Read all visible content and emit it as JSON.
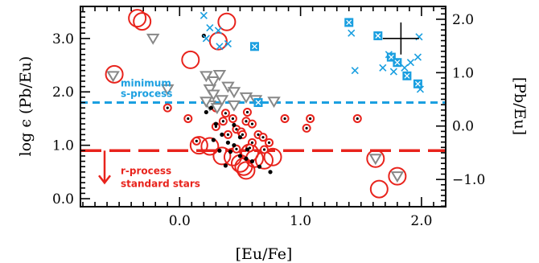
{
  "chart_data": {
    "type": "scatter",
    "xlabel": "[Eu/Fe]",
    "ylabel": "log ϵ (Pb/Eu)",
    "ylabel_right": "[Pb/Eu]",
    "xlim": [
      -0.82,
      2.2
    ],
    "ylim": [
      -0.15,
      3.6
    ],
    "right_axis_offset": 1.36,
    "x_ticks": [
      0.0,
      1.0,
      2.0
    ],
    "y_ticks": [
      0.0,
      1.0,
      2.0,
      3.0
    ],
    "y_right_ticks": [
      -1.0,
      0.0,
      1.0,
      2.0
    ],
    "x_tick_labels": [
      "0.0",
      "1.0",
      "2.0"
    ],
    "y_tick_labels": [
      "0.0",
      "1.0",
      "2.0",
      "3.0"
    ],
    "y_right_tick_labels": [
      "−1.0",
      "0.0",
      "1.0",
      "2.0"
    ],
    "grid": false,
    "colors": {
      "s_process": "#1a9fe0",
      "r_process": "#e8231c",
      "upper_limit": "#888888",
      "black": "#000000"
    },
    "reference_lines": [
      {
        "y": 1.8,
        "color": "#1a9fe0",
        "style": "dashed",
        "text": [
          "minimum",
          "s-process"
        ]
      },
      {
        "y": 0.9,
        "color": "#e8231c",
        "style": "long-dashed",
        "text": [
          "r-process",
          "standard stars"
        ]
      }
    ],
    "error_bar": {
      "x": 1.83,
      "y": 3.0,
      "dx": 0.15,
      "dy": 0.3
    },
    "series": [
      {
        "marker": "blue-x",
        "points": [
          [
            0.2,
            3.43
          ],
          [
            0.25,
            3.2
          ],
          [
            0.22,
            3.0
          ],
          [
            0.32,
            3.15
          ],
          [
            0.33,
            2.85
          ],
          [
            0.4,
            2.9
          ],
          [
            1.42,
            3.1
          ],
          [
            1.68,
            2.45
          ],
          [
            1.73,
            2.7
          ],
          [
            1.77,
            2.38
          ],
          [
            1.86,
            2.45
          ],
          [
            1.91,
            2.55
          ],
          [
            1.97,
            2.65
          ],
          [
            1.98,
            3.03
          ],
          [
            1.99,
            2.05
          ],
          [
            1.45,
            2.4
          ]
        ]
      },
      {
        "marker": "blue-boxed-x",
        "points": [
          [
            0.62,
            2.85
          ],
          [
            1.4,
            3.3
          ],
          [
            1.64,
            3.05
          ],
          [
            1.75,
            2.65
          ],
          [
            1.8,
            2.55
          ],
          [
            1.88,
            2.3
          ],
          [
            1.97,
            2.15
          ],
          [
            0.65,
            1.8
          ]
        ]
      },
      {
        "marker": "gray-triangle",
        "points": [
          [
            -0.22,
            3.0
          ],
          [
            -0.55,
            2.3
          ],
          [
            -0.1,
            2.05
          ],
          [
            0.22,
            2.3
          ],
          [
            0.25,
            2.05
          ],
          [
            0.28,
            2.2
          ],
          [
            0.33,
            2.32
          ],
          [
            0.28,
            1.95
          ],
          [
            0.25,
            1.75
          ],
          [
            0.31,
            1.7
          ],
          [
            0.4,
            2.1
          ],
          [
            0.45,
            2.0
          ],
          [
            0.55,
            1.9
          ],
          [
            0.35,
            1.85
          ],
          [
            0.45,
            1.75
          ],
          [
            0.63,
            1.85
          ],
          [
            0.78,
            1.82
          ],
          [
            0.22,
            1.82
          ],
          [
            1.62,
            0.75
          ],
          [
            1.8,
            0.42
          ]
        ]
      },
      {
        "marker": "red-circle",
        "points": [
          [
            -0.35,
            3.38
          ],
          [
            -0.31,
            3.32
          ],
          [
            0.39,
            3.31
          ],
          [
            0.32,
            2.95
          ],
          [
            0.09,
            2.6
          ],
          [
            -0.54,
            2.33
          ],
          [
            0.16,
            1.0
          ],
          [
            0.25,
            0.98
          ],
          [
            0.35,
            0.8
          ],
          [
            0.44,
            0.78
          ],
          [
            0.5,
            0.66
          ],
          [
            0.53,
            0.6
          ],
          [
            0.55,
            0.53
          ],
          [
            0.58,
            0.86
          ],
          [
            0.62,
            0.75
          ],
          [
            0.7,
            0.72
          ],
          [
            0.77,
            0.78
          ],
          [
            1.65,
            0.18
          ],
          [
            1.8,
            0.42
          ],
          [
            1.62,
            0.75
          ]
        ]
      },
      {
        "marker": "red-dot-circle",
        "points": [
          [
            -0.1,
            1.7
          ],
          [
            0.07,
            1.5
          ],
          [
            0.3,
            1.7
          ],
          [
            0.38,
            1.6
          ],
          [
            0.44,
            1.5
          ],
          [
            0.47,
            1.3
          ],
          [
            0.51,
            1.25
          ],
          [
            0.55,
            1.45
          ],
          [
            0.6,
            1.4
          ],
          [
            0.65,
            1.2
          ],
          [
            0.69,
            1.15
          ],
          [
            0.74,
            1.05
          ],
          [
            0.87,
            1.5
          ],
          [
            1.05,
            1.32
          ],
          [
            1.08,
            1.5
          ],
          [
            1.47,
            1.5
          ],
          [
            0.14,
            1.08
          ],
          [
            0.3,
            1.35
          ],
          [
            0.52,
            1.2
          ],
          [
            0.6,
            1.05
          ],
          [
            0.4,
            1.2
          ],
          [
            0.47,
            0.93
          ],
          [
            0.58,
            0.95
          ],
          [
            0.7,
            0.92
          ],
          [
            0.36,
            1.45
          ],
          [
            0.56,
            1.62
          ]
        ]
      },
      {
        "marker": "black-dot",
        "points": [
          [
            0.22,
            1.62
          ],
          [
            0.26,
            1.7
          ],
          [
            0.3,
            1.4
          ],
          [
            0.28,
            1.1
          ],
          [
            0.35,
            1.2
          ],
          [
            0.4,
            1.05
          ],
          [
            0.45,
            1.0
          ],
          [
            0.5,
            1.15
          ],
          [
            0.33,
            0.9
          ],
          [
            0.42,
            0.88
          ],
          [
            0.5,
            0.8
          ],
          [
            0.56,
            0.92
          ],
          [
            0.6,
            0.7
          ],
          [
            0.66,
            0.6
          ],
          [
            0.75,
            0.5
          ],
          [
            0.66,
            1.8
          ],
          [
            0.38,
            0.62
          ],
          [
            0.55,
            0.75
          ],
          [
            0.2,
            3.05
          ],
          [
            0.45,
            1.38
          ]
        ]
      }
    ]
  }
}
